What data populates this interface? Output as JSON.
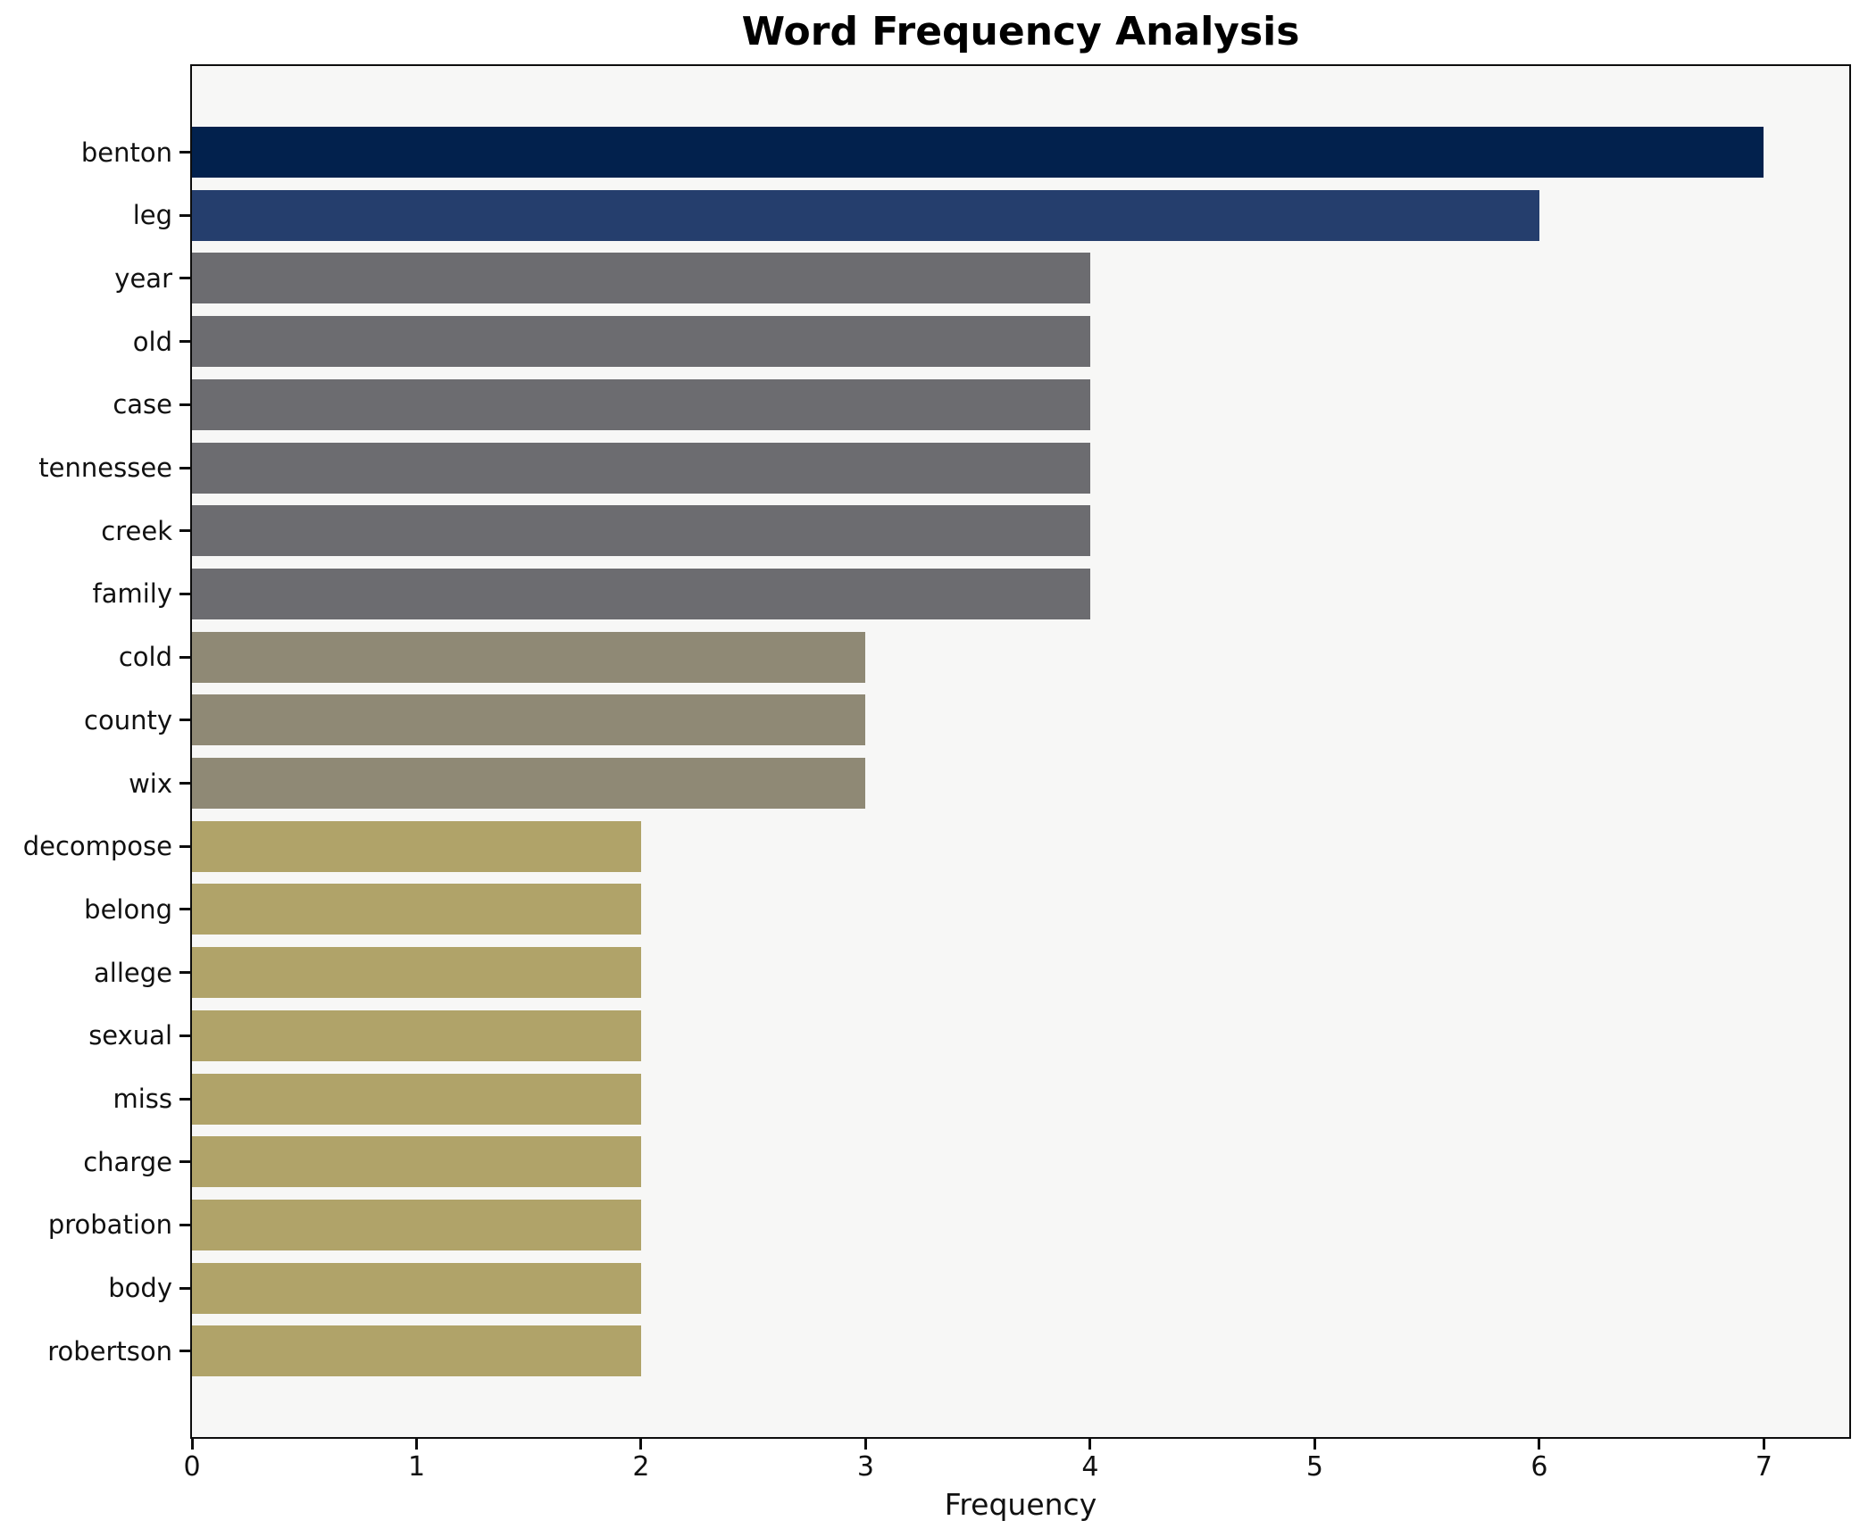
{
  "chart_data": {
    "type": "bar",
    "orientation": "horizontal",
    "title": "Word Frequency Analysis",
    "xlabel": "Frequency",
    "ylabel": "",
    "categories": [
      "benton",
      "leg",
      "year",
      "old",
      "case",
      "tennessee",
      "creek",
      "family",
      "cold",
      "county",
      "wix",
      "decompose",
      "belong",
      "allege",
      "sexual",
      "miss",
      "charge",
      "probation",
      "body",
      "robertson"
    ],
    "values": [
      7,
      6,
      4,
      4,
      4,
      4,
      4,
      4,
      3,
      3,
      3,
      2,
      2,
      2,
      2,
      2,
      2,
      2,
      2,
      2
    ],
    "bar_colors": [
      "#02214d",
      "#253e6d",
      "#6c6c70",
      "#6c6c70",
      "#6c6c70",
      "#6c6c70",
      "#6c6c70",
      "#6c6c70",
      "#8f8975",
      "#8f8975",
      "#8f8975",
      "#b0a369",
      "#b0a369",
      "#b0a369",
      "#b0a369",
      "#b0a369",
      "#b0a369",
      "#b0a369",
      "#b0a369",
      "#b0a369"
    ],
    "xticks": [
      "0",
      "1",
      "2",
      "3",
      "4",
      "5",
      "6",
      "7"
    ],
    "xlim": [
      0,
      7.38
    ],
    "grid": false,
    "legend_position": "none",
    "plot_background": "#f7f7f6",
    "figure_background": "#ffffff",
    "text_color": "#111111",
    "axis_color": "#0d0d0d"
  }
}
